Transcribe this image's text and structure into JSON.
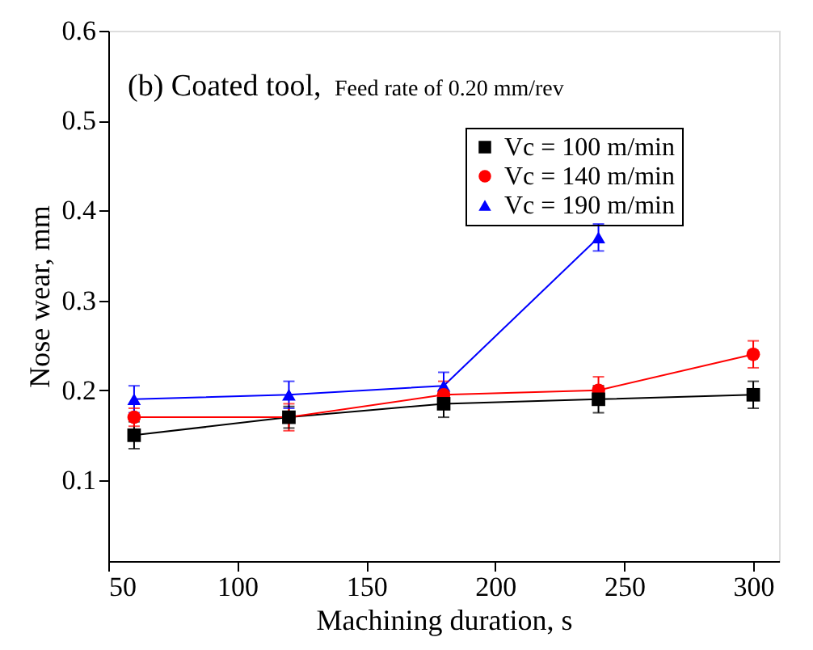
{
  "chart_data": {
    "type": "line",
    "xlabel": "Machining duration, s",
    "ylabel": "Nose wear, mm",
    "annotations": [
      "(b) Coated tool,",
      "Feed rate of 0.20 mm/rev"
    ],
    "x": [
      60,
      120,
      180,
      240,
      300
    ],
    "series": [
      {
        "name": "Vc = 100 m/min",
        "color": "#000000",
        "marker": "square",
        "values": [
          0.15,
          0.17,
          0.185,
          0.19,
          0.195
        ],
        "errors": [
          0.015,
          0.012,
          0.015,
          0.015,
          0.015
        ]
      },
      {
        "name": "Vc = 140 m/min",
        "color": "#ff0000",
        "marker": "circle",
        "values": [
          0.17,
          0.17,
          0.195,
          0.2,
          0.24
        ],
        "errors": [
          0.01,
          0.015,
          0.015,
          0.015,
          0.015
        ]
      },
      {
        "name": "Vc = 190 m/min",
        "color": "#0000ff",
        "marker": "triangle",
        "values": [
          0.19,
          0.195,
          0.205,
          0.37,
          null
        ],
        "errors": [
          0.015,
          0.015,
          0.015,
          0.015,
          null
        ]
      }
    ],
    "xlim": [
      50,
      310
    ],
    "xticks": [
      50,
      100,
      150,
      200,
      250,
      300
    ],
    "ylim": [
      0.01,
      0.6
    ],
    "yticks": [
      0.1,
      0.2,
      0.3,
      0.4,
      0.5,
      0.6
    ],
    "grid": false,
    "legend": "top right",
    "line_style": "solid"
  }
}
